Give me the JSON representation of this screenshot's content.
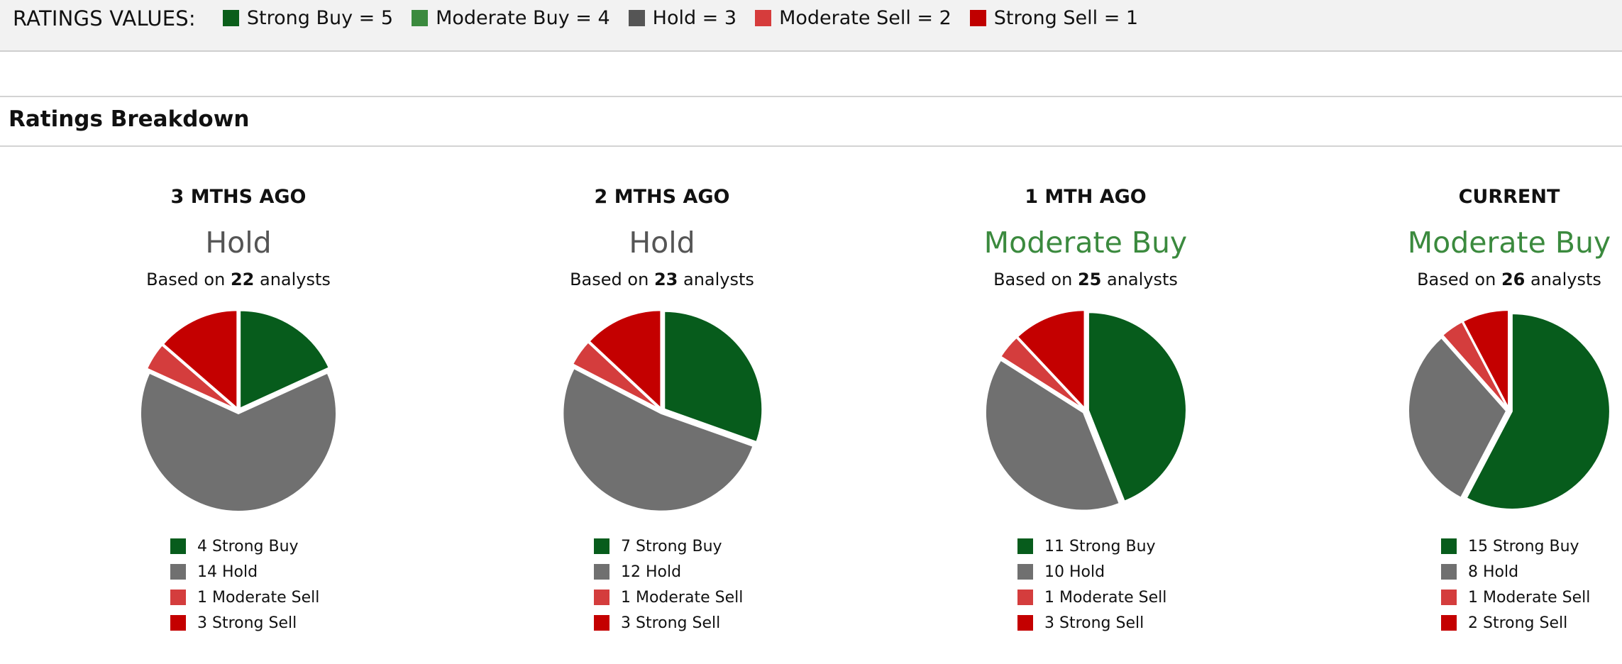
{
  "header": {
    "title": "RATINGS VALUES:",
    "items": [
      {
        "label": "Strong Buy = 5",
        "color": "#0b5e1a"
      },
      {
        "label": "Moderate Buy = 4",
        "color": "#3b8a3e"
      },
      {
        "label": "Hold = 3",
        "color": "#555555"
      },
      {
        "label": "Moderate Sell = 2",
        "color": "#d63c3c"
      },
      {
        "label": "Strong Sell = 1",
        "color": "#c00000"
      }
    ]
  },
  "section_title": "Ratings Breakdown",
  "colors": {
    "strong_buy": "#075c1c",
    "hold": "#707070",
    "moderate_sell": "#d43d3d",
    "strong_sell": "#c40000",
    "consensus_hold": "#555555",
    "consensus_moderate_buy": "#3b8a3e"
  },
  "chart_data": [
    {
      "type": "pie",
      "title": "3 MTHS AGO",
      "consensus": "Hold",
      "based_prefix": "Based on",
      "analysts": "22",
      "based_suffix": "analysts",
      "slices": [
        {
          "label": "4 Strong Buy",
          "value": 4,
          "key": "strong_buy"
        },
        {
          "label": "14 Hold",
          "value": 14,
          "key": "hold"
        },
        {
          "label": "1 Moderate Sell",
          "value": 1,
          "key": "moderate_sell"
        },
        {
          "label": "3 Strong Sell",
          "value": 3,
          "key": "strong_sell"
        }
      ]
    },
    {
      "type": "pie",
      "title": "2 MTHS AGO",
      "consensus": "Hold",
      "based_prefix": "Based on",
      "analysts": "23",
      "based_suffix": "analysts",
      "slices": [
        {
          "label": "7 Strong Buy",
          "value": 7,
          "key": "strong_buy"
        },
        {
          "label": "12 Hold",
          "value": 12,
          "key": "hold"
        },
        {
          "label": "1 Moderate Sell",
          "value": 1,
          "key": "moderate_sell"
        },
        {
          "label": "3 Strong Sell",
          "value": 3,
          "key": "strong_sell"
        }
      ]
    },
    {
      "type": "pie",
      "title": "1 MTH AGO",
      "consensus": "Moderate Buy",
      "based_prefix": "Based on",
      "analysts": "25",
      "based_suffix": "analysts",
      "slices": [
        {
          "label": "11 Strong Buy",
          "value": 11,
          "key": "strong_buy"
        },
        {
          "label": "10 Hold",
          "value": 10,
          "key": "hold"
        },
        {
          "label": "1 Moderate Sell",
          "value": 1,
          "key": "moderate_sell"
        },
        {
          "label": "3 Strong Sell",
          "value": 3,
          "key": "strong_sell"
        }
      ]
    },
    {
      "type": "pie",
      "title": "CURRENT",
      "consensus": "Moderate Buy",
      "based_prefix": "Based on",
      "analysts": "26",
      "based_suffix": "analysts",
      "slices": [
        {
          "label": "15 Strong Buy",
          "value": 15,
          "key": "strong_buy"
        },
        {
          "label": "8 Hold",
          "value": 8,
          "key": "hold"
        },
        {
          "label": "1 Moderate Sell",
          "value": 1,
          "key": "moderate_sell"
        },
        {
          "label": "2 Strong Sell",
          "value": 2,
          "key": "strong_sell"
        }
      ]
    }
  ]
}
